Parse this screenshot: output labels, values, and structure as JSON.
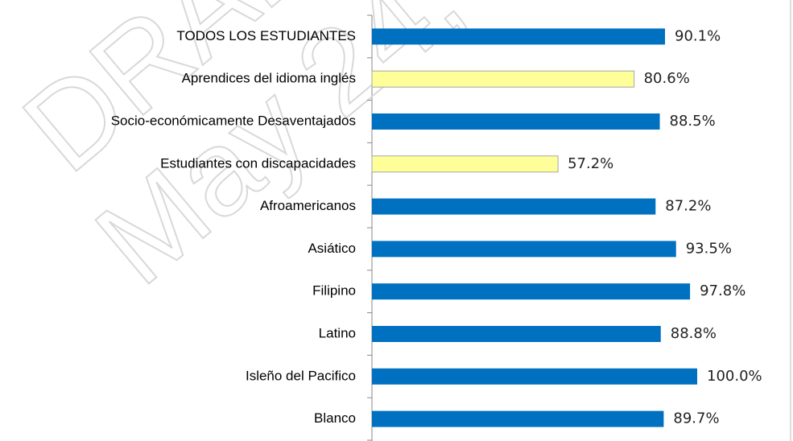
{
  "chart_data": {
    "type": "bar",
    "orientation": "horizontal",
    "watermark": [
      "DRAFT",
      "May 24,"
    ],
    "categories": [
      "TODOS LOS ESTUDIANTES",
      "Aprendices del idioma inglés",
      "Socio-económicamente Desaventajados",
      "Estudiantes con discapacidades",
      "Afroamericanos",
      "Asiático",
      "Filipino",
      "Latino",
      "Isleño del Pacifico",
      "Blanco"
    ],
    "values": [
      90.1,
      80.6,
      88.5,
      57.2,
      87.2,
      93.5,
      97.8,
      88.8,
      100.0,
      89.7
    ],
    "value_labels": [
      "90.1%",
      "80.6%",
      "88.5%",
      "57.2%",
      "87.2%",
      "93.5%",
      "97.8%",
      "88.8%",
      "100.0%",
      "89.7%"
    ],
    "colors": [
      "#0070c0",
      "#ffff99",
      "#0070c0",
      "#ffff99",
      "#0070c0",
      "#0070c0",
      "#0070c0",
      "#0070c0",
      "#0070c0",
      "#0070c0"
    ],
    "xlim": [
      0,
      100
    ]
  }
}
